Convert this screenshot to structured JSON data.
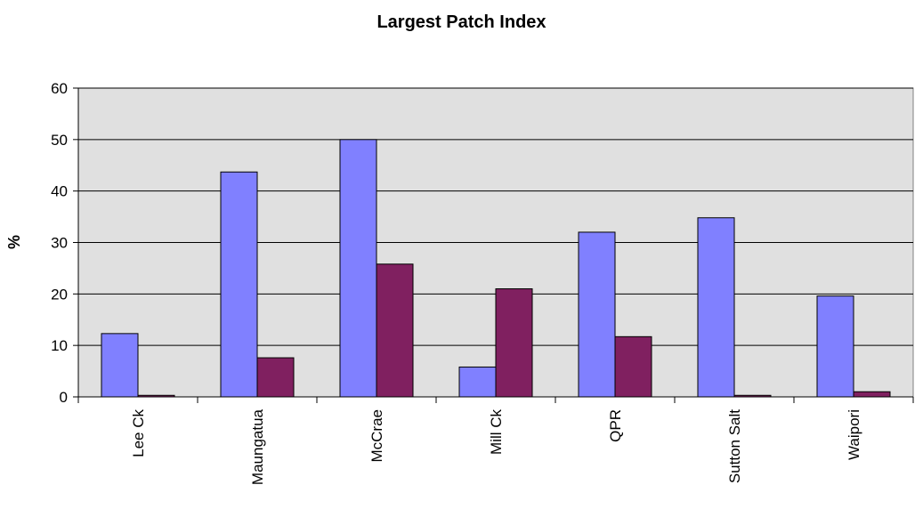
{
  "chart_data": {
    "type": "bar",
    "title": "Largest Patch Index",
    "xlabel": "",
    "ylabel": "%",
    "categories": [
      "Lee Ck",
      "Maungatua",
      "McCrae",
      "Mill Ck",
      "QPR",
      "Sutton Salt",
      "Waipori"
    ],
    "series": [
      {
        "color": "#8080ff",
        "values": [
          12.3,
          43.7,
          50.0,
          5.8,
          32.0,
          34.8,
          19.6
        ]
      },
      {
        "color": "#802060",
        "values": [
          0.3,
          7.6,
          25.8,
          21.0,
          11.7,
          0.3,
          1.0
        ]
      }
    ],
    "ylim": [
      0,
      60
    ],
    "yticks": [
      0,
      10,
      20,
      30,
      40,
      50,
      60
    ],
    "grid": true,
    "legend": "none",
    "plot_background": "#e0e0e0"
  }
}
